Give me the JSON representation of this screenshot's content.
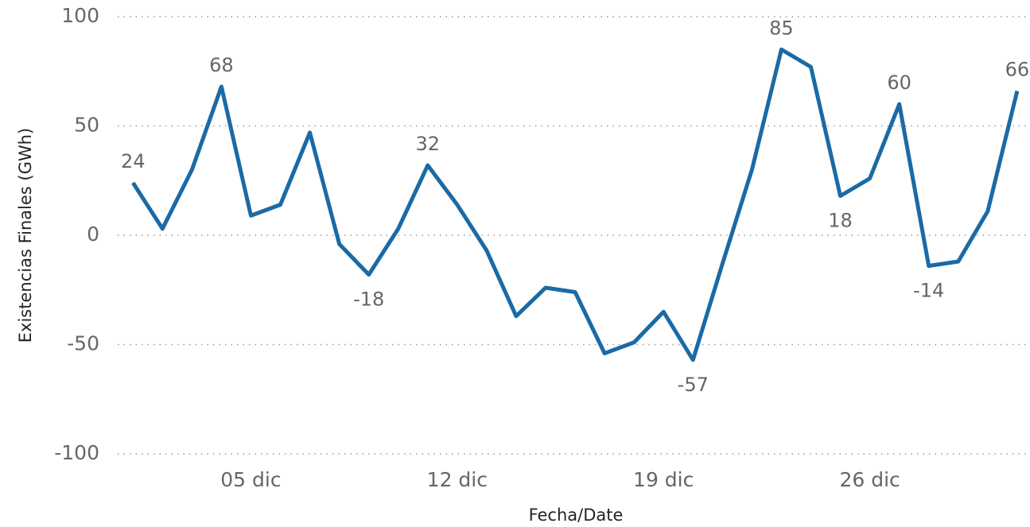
{
  "chart_data": {
    "type": "line",
    "x_label": "Fecha/Date",
    "y_label": "Existencias Finales (GWh)",
    "x": [
      1,
      2,
      3,
      4,
      5,
      6,
      7,
      8,
      9,
      10,
      11,
      12,
      13,
      14,
      15,
      16,
      17,
      18,
      19,
      20,
      21,
      22,
      23,
      24,
      25,
      26,
      27,
      28,
      29,
      30,
      31
    ],
    "series": [
      {
        "name": "Existencias Finales",
        "color": "#1a6aa6",
        "values": [
          24,
          3,
          30,
          68,
          9,
          14,
          47,
          -4,
          -18,
          3,
          32,
          14,
          -7,
          -37,
          -24,
          -26,
          -54,
          -49,
          -35,
          -57,
          -13,
          30,
          85,
          77,
          18,
          26,
          60,
          -14,
          -12,
          11,
          66
        ],
        "value_labels": [
          "24",
          null,
          null,
          "68",
          null,
          null,
          null,
          null,
          "-18",
          null,
          "32",
          null,
          null,
          null,
          null,
          null,
          null,
          null,
          null,
          "-57",
          null,
          null,
          "85",
          null,
          "18",
          null,
          "60",
          "-14",
          null,
          null,
          "66"
        ]
      }
    ],
    "xlim": [
      0.4,
      31.3
    ],
    "xticks": [
      {
        "value": 5,
        "label": "05 dic"
      },
      {
        "value": 12,
        "label": "12 dic"
      },
      {
        "value": 19,
        "label": "19 dic"
      },
      {
        "value": 26,
        "label": "26 dic"
      }
    ],
    "ylim": [
      -100,
      100
    ],
    "yticks": [
      -100,
      -50,
      0,
      50,
      100
    ],
    "grid": true
  }
}
